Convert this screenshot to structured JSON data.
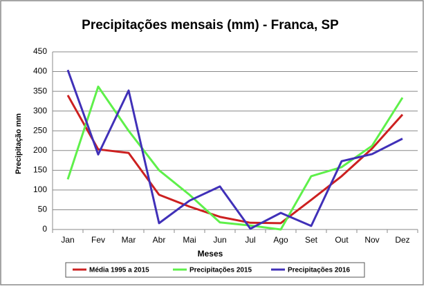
{
  "chart_data": {
    "type": "line",
    "title": "Precipitações mensais (mm) - Franca, SP",
    "x_label": "Meses",
    "y_label": "Precipitação mm",
    "categories": [
      "Jan",
      "Fev",
      "Mar",
      "Abr",
      "Mai",
      "Jun",
      "Jul",
      "Ago",
      "Set",
      "Out",
      "Nov",
      "Dez"
    ],
    "series": [
      {
        "name": "Média 1995 a 2015",
        "color": "#cc2020",
        "values": [
          340,
          203,
          194,
          88,
          58,
          32,
          17,
          16,
          75,
          135,
          205,
          291
        ]
      },
      {
        "name": "Precipitações 2015",
        "color": "#5ef04a",
        "values": [
          127,
          362,
          250,
          150,
          88,
          18,
          10,
          0,
          135,
          158,
          212,
          334
        ]
      },
      {
        "name": "Precipitações 2016",
        "color": "#4030b8",
        "values": [
          404,
          190,
          352,
          16,
          73,
          109,
          2,
          42,
          9,
          173,
          191,
          230
        ]
      }
    ],
    "ylim": [
      0,
      450
    ],
    "yticks": [
      0,
      50,
      100,
      150,
      200,
      250,
      300,
      350,
      400,
      450
    ],
    "grid": true,
    "legend": "bottom"
  }
}
